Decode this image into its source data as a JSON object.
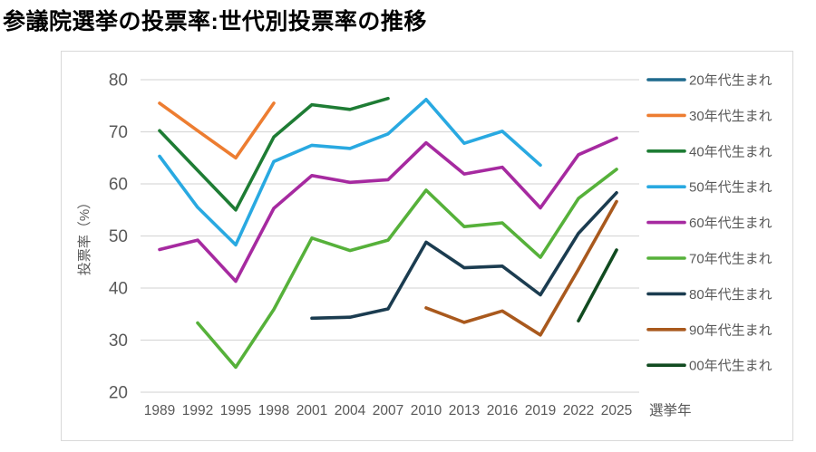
{
  "page": {
    "title": "参議院選挙の投票率:世代別投票率の推移"
  },
  "chart_data": {
    "type": "line",
    "title": "参議院選挙の投票率:世代別投票率の推移",
    "xlabel": "選挙年",
    "ylabel": "投票率（%）",
    "x": [
      1989,
      1992,
      1995,
      1998,
      2001,
      2004,
      2007,
      2010,
      2013,
      2016,
      2019,
      2022,
      2025
    ],
    "y_ticks": [
      20,
      30,
      40,
      50,
      60,
      70,
      80
    ],
    "ylim": [
      20,
      80
    ],
    "grid": true,
    "legend_position": "right",
    "colors": {
      "grid": "#d9d9d9",
      "border": "#d9d9d9",
      "axis_text": "#595959",
      "title_text": "#000000"
    },
    "series": [
      {
        "name": "20年代生まれ",
        "color": "#1f6a8d",
        "values": [
          null,
          null,
          null,
          null,
          null,
          null,
          null,
          null,
          null,
          null,
          null,
          null,
          null
        ]
      },
      {
        "name": "30年代生まれ",
        "color": "#ed7d31",
        "values": [
          75.5,
          70.2,
          65.0,
          75.5,
          null,
          null,
          null,
          null,
          null,
          null,
          null,
          null,
          null
        ]
      },
      {
        "name": "40年代生まれ",
        "color": "#1e7c34",
        "values": [
          70.2,
          62.6,
          55.0,
          69.0,
          75.2,
          74.3,
          76.4,
          null,
          null,
          null,
          null,
          null,
          null
        ]
      },
      {
        "name": "50年代生まれ",
        "color": "#29a9e1",
        "values": [
          65.3,
          55.5,
          48.3,
          64.3,
          67.4,
          66.8,
          69.6,
          76.2,
          67.8,
          70.1,
          63.6,
          null,
          null
        ]
      },
      {
        "name": "60年代生まれ",
        "color": "#a62aa0",
        "values": [
          47.4,
          49.2,
          41.3,
          55.3,
          61.6,
          60.3,
          60.8,
          67.9,
          61.9,
          63.2,
          55.4,
          65.6,
          68.8
        ]
      },
      {
        "name": "70年代生まれ",
        "color": "#56b13a",
        "values": [
          null,
          33.3,
          24.8,
          35.9,
          49.6,
          47.2,
          49.2,
          58.8,
          51.8,
          52.5,
          45.9,
          57.2,
          62.8
        ]
      },
      {
        "name": "80年代生まれ",
        "color": "#1b3c50",
        "values": [
          null,
          null,
          null,
          null,
          34.2,
          34.4,
          36.0,
          48.8,
          43.9,
          44.2,
          38.7,
          50.5,
          58.3
        ]
      },
      {
        "name": "90年代生まれ",
        "color": "#a9591d",
        "values": [
          null,
          null,
          null,
          null,
          null,
          null,
          null,
          36.2,
          33.4,
          35.6,
          31.0,
          43.6,
          56.6
        ]
      },
      {
        "name": "00年代生まれ",
        "color": "#114b20",
        "values": [
          null,
          null,
          null,
          null,
          null,
          null,
          null,
          null,
          null,
          null,
          null,
          33.7,
          47.3
        ]
      }
    ]
  }
}
